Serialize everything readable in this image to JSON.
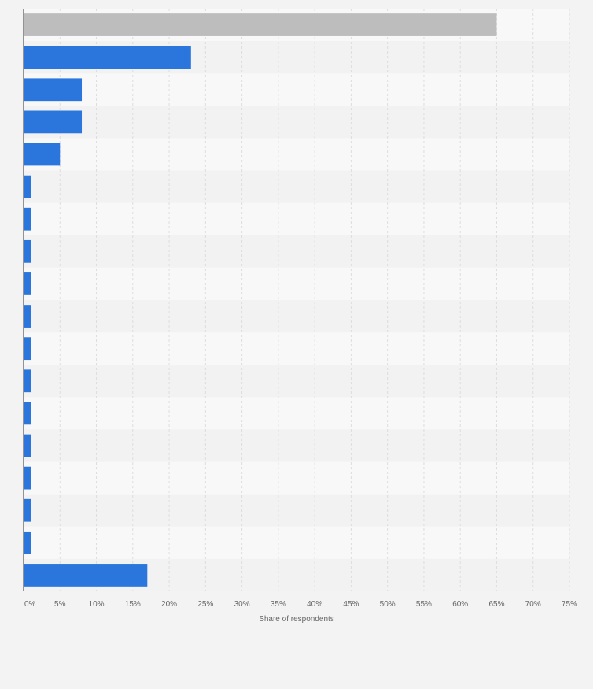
{
  "chart_data": {
    "type": "bar",
    "orientation": "horizontal",
    "title": "",
    "xlabel": "Share of respondents",
    "ylabel": "",
    "xlim": [
      0,
      75
    ],
    "x_ticks": [
      0,
      5,
      10,
      15,
      20,
      25,
      30,
      35,
      40,
      45,
      50,
      55,
      60,
      65,
      70,
      75
    ],
    "tick_suffix": "%",
    "grid": true,
    "legend": "none",
    "values": [
      65,
      23,
      8,
      8,
      5,
      1,
      1,
      1,
      1,
      1,
      1,
      1,
      1,
      1,
      1,
      1,
      1,
      17
    ],
    "highlight_index": 0,
    "colors": {
      "bar": "#2a76dd",
      "highlight_bar": "#bdbdbd",
      "band_light": "#f8f8f8",
      "band_dark": "#f2f2f2",
      "grid": "#dddddd",
      "axis": "#333333",
      "tick_text": "#666666"
    }
  }
}
